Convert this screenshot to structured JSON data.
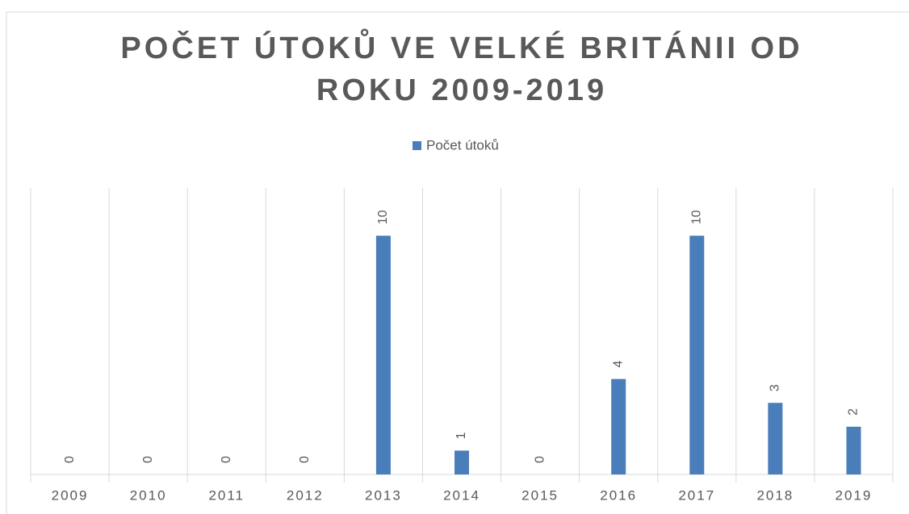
{
  "chart_data": {
    "type": "bar",
    "title": [
      "POČET ÚTOKŮ VE VELKÉ BRITÁNII OD",
      "ROKU 2009-2019"
    ],
    "categories": [
      "2009",
      "2010",
      "2011",
      "2012",
      "2013",
      "2014",
      "2015",
      "2016",
      "2017",
      "2018",
      "2019"
    ],
    "series": [
      {
        "name": "Počet útoků",
        "color": "#4a7ebb",
        "values": [
          0,
          0,
          0,
          0,
          10,
          1,
          0,
          4,
          10,
          3,
          2
        ]
      }
    ],
    "ylim": [
      0,
      12
    ],
    "legend": "top"
  }
}
